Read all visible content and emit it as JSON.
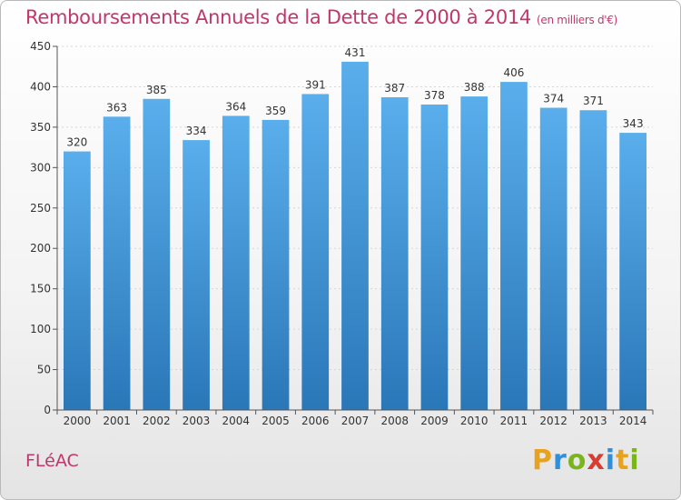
{
  "title": "Remboursements Annuels de la Dette de 2000 à 2014",
  "unit_note": "(en milliers d'€)",
  "commune": "FLéAC",
  "brand": {
    "letters": [
      "P",
      "r",
      "o",
      "x",
      "i",
      "t",
      "i"
    ],
    "colors": [
      "#e9a21c",
      "#2f8fd8",
      "#7ab51d",
      "#d73d33",
      "#2f8fd8",
      "#e9a21c",
      "#7ab51d"
    ]
  },
  "colors": {
    "bar_top": "#5aaeec",
    "bar_bottom": "#2a77b8",
    "title": "#c2366b"
  },
  "chart_data": {
    "type": "bar",
    "categories": [
      "2000",
      "2001",
      "2002",
      "2003",
      "2004",
      "2005",
      "2006",
      "2007",
      "2008",
      "2009",
      "2010",
      "2011",
      "2012",
      "2013",
      "2014"
    ],
    "values": [
      320,
      363,
      385,
      334,
      364,
      359,
      391,
      431,
      387,
      378,
      388,
      406,
      374,
      371,
      343
    ],
    "yticks": [
      0,
      50,
      100,
      150,
      200,
      250,
      300,
      350,
      400,
      450
    ],
    "ylim": [
      0,
      450
    ],
    "grid": true
  }
}
